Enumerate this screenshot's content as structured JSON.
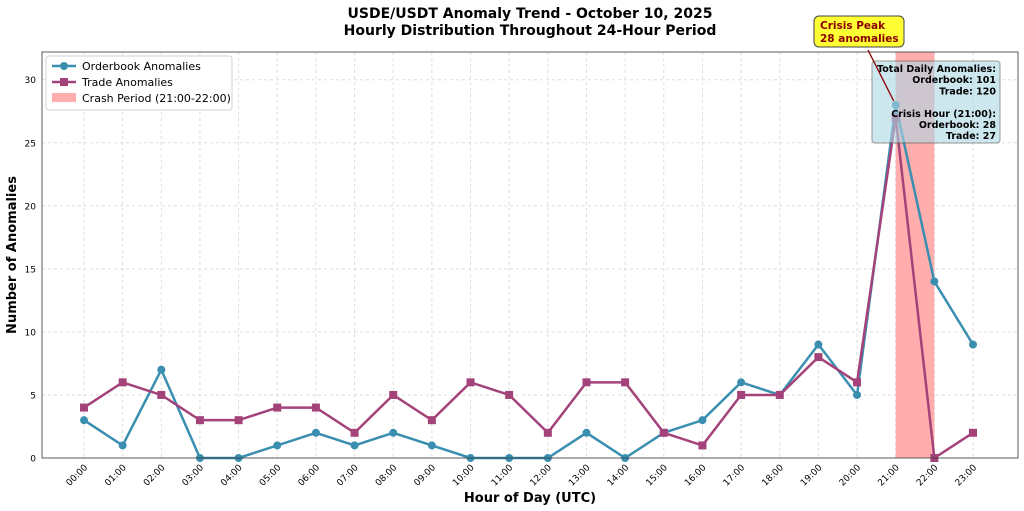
{
  "chart_data": {
    "type": "line",
    "title": "USDE/USDT Anomaly Trend - October 10, 2025",
    "subtitle": "Hourly Distribution Throughout 24-Hour Period",
    "xlabel": "Hour of Day (UTC)",
    "ylabel": "Number of Anomalies",
    "categories": [
      "00:00",
      "01:00",
      "02:00",
      "03:00",
      "04:00",
      "05:00",
      "06:00",
      "07:00",
      "08:00",
      "09:00",
      "10:00",
      "11:00",
      "12:00",
      "13:00",
      "14:00",
      "15:00",
      "16:00",
      "17:00",
      "18:00",
      "19:00",
      "20:00",
      "21:00",
      "22:00",
      "23:00"
    ],
    "ylim": [
      0,
      32.2
    ],
    "yticks": [
      0,
      5,
      10,
      15,
      20,
      25,
      30
    ],
    "grid": true,
    "legend_position": "top-left",
    "series": [
      {
        "name": "Orderbook Anomalies",
        "color": "#3a8fb0",
        "marker": "circle",
        "values": [
          3,
          1,
          7,
          0,
          0,
          1,
          2,
          1,
          2,
          1,
          0,
          0,
          0,
          2,
          0,
          2,
          3,
          6,
          5,
          9,
          5,
          28,
          14,
          9
        ]
      },
      {
        "name": "Trade Anomalies",
        "color": "#a4427a",
        "marker": "square",
        "values": [
          4,
          6,
          5,
          3,
          3,
          4,
          4,
          2,
          5,
          3,
          6,
          5,
          2,
          6,
          6,
          2,
          1,
          5,
          5,
          8,
          6,
          27,
          0,
          2
        ]
      }
    ],
    "shaded_region": {
      "label": "Crash Period (21:00-22:00)",
      "start": "21:00",
      "end": "22:00",
      "color": "#ff9999"
    },
    "annotation": {
      "lines": [
        "Crisis Peak",
        "28 anomalies"
      ],
      "target_hour": "21:00",
      "target_value": 28
    },
    "info_box": {
      "lines": [
        "Total Daily Anomalies:",
        "Orderbook: 101",
        "Trade: 120",
        "",
        "Crisis Hour (21:00):",
        "Orderbook: 28",
        "Trade: 27"
      ]
    }
  }
}
